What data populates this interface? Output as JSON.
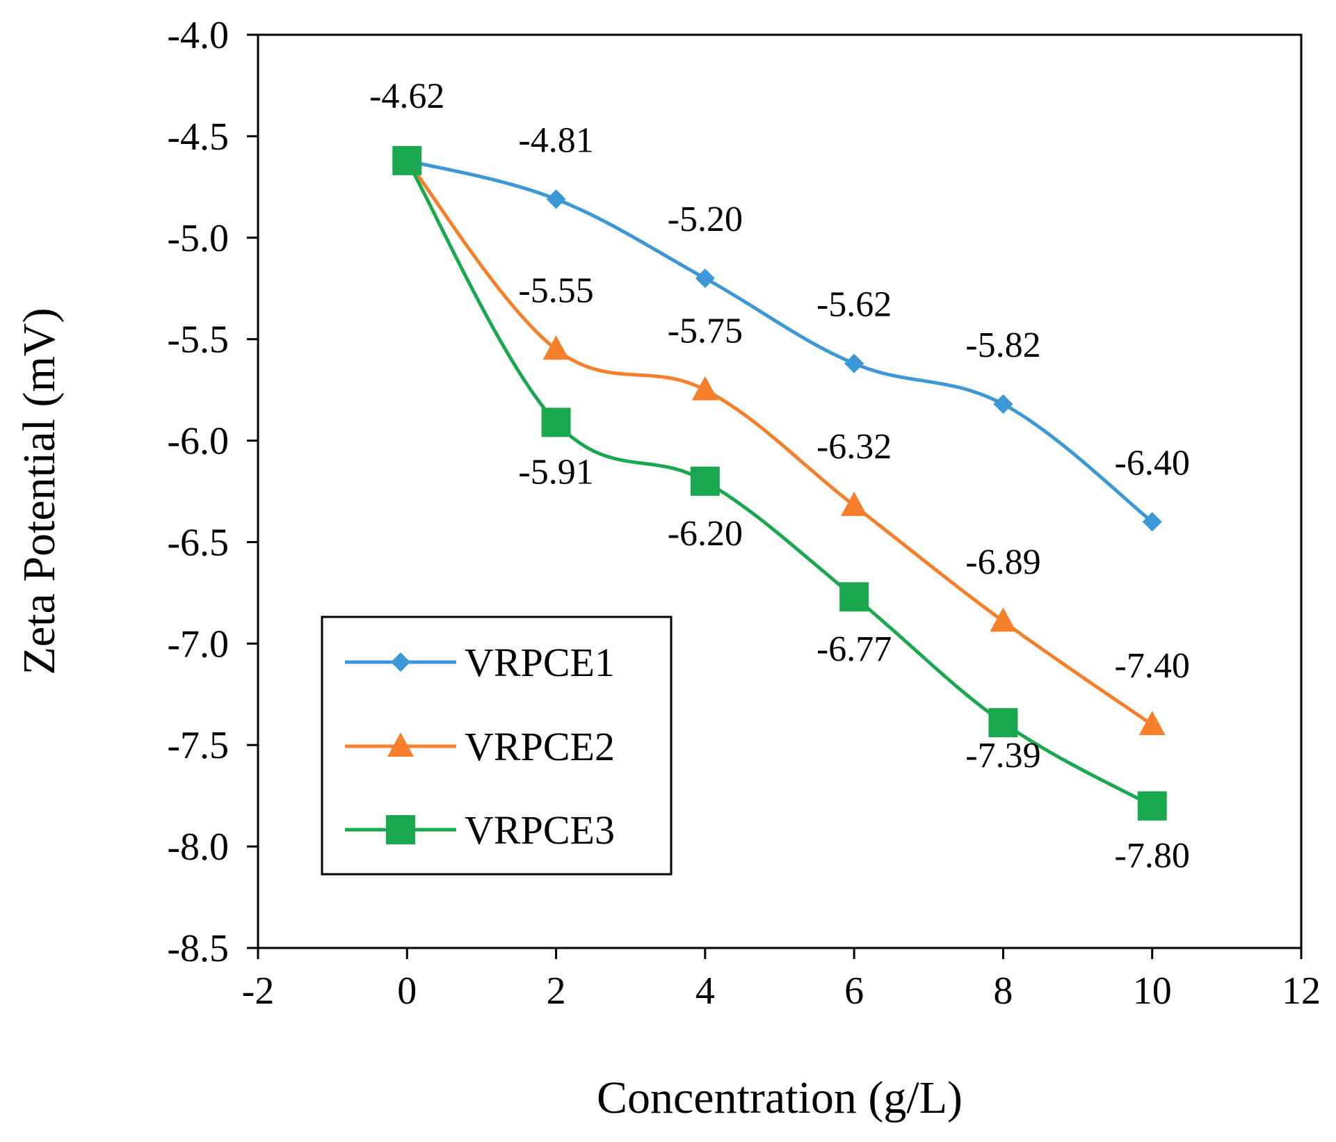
{
  "chart_data": {
    "type": "line",
    "title": "",
    "xlabel": "Concentration (g/L)",
    "ylabel": "Zeta Potential (mV)",
    "xlim": [
      -2,
      12
    ],
    "ylim": [
      -8.5,
      -4.0
    ],
    "xticks": [
      -2,
      0,
      2,
      4,
      6,
      8,
      10,
      12
    ],
    "xtick_labels": [
      "-2",
      "0",
      "2",
      "4",
      "6",
      "8",
      "10",
      "12"
    ],
    "yticks": [
      -4.0,
      -4.5,
      -5.0,
      -5.5,
      -6.0,
      -6.5,
      -7.0,
      -7.5,
      -8.0,
      -8.5
    ],
    "ytick_labels": [
      "-4.0",
      "-4.5",
      "-5.0",
      "-5.5",
      "-6.0",
      "-6.5",
      "-7.0",
      "-7.5",
      "-8.0",
      "-8.5"
    ],
    "grid": false,
    "legend_position": "bottom-left",
    "x": [
      0,
      2,
      4,
      6,
      8,
      10
    ],
    "series": [
      {
        "name": "VRPCE1",
        "color": "#3b97d6",
        "marker": "diamond",
        "values": [
          -4.62,
          -4.81,
          -5.2,
          -5.62,
          -5.82,
          -6.4
        ],
        "labels": [
          "",
          "-4.81",
          "-5.20",
          "-5.62",
          "-5.82",
          "-6.40"
        ]
      },
      {
        "name": "VRPCE2",
        "color": "#f57f2a",
        "marker": "triangle",
        "values": [
          -4.62,
          -5.55,
          -5.75,
          -6.32,
          -6.89,
          -7.4
        ],
        "labels": [
          "",
          "-5.55",
          "-5.75",
          "-6.32",
          "-6.89",
          "-7.40"
        ]
      },
      {
        "name": "VRPCE3",
        "color": "#1aa84f",
        "marker": "square",
        "values": [
          -4.62,
          -5.91,
          -6.2,
          -6.77,
          -7.39,
          -7.8
        ],
        "labels": [
          "-4.62",
          "-5.91",
          "-6.20",
          "-6.77",
          "-7.39",
          "-7.80"
        ]
      }
    ]
  }
}
